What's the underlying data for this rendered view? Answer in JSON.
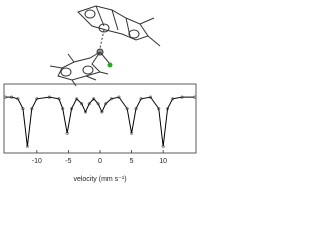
{
  "chart_data": {
    "type": "line",
    "xlabel": "velocity (mm s⁻¹)",
    "x": [
      -15,
      -14,
      -13,
      -12.2,
      -11.5,
      -10.8,
      -10,
      -8,
      -6.5,
      -5.9,
      -5.2,
      -4.5,
      -3.7,
      -2.9,
      -2.3,
      -1.7,
      -1,
      -0.3,
      0.3,
      0.9,
      1.8,
      3,
      4.3,
      5.0,
      5.7,
      6.5,
      8,
      9.3,
      10,
      10.7,
      11.5,
      13,
      15
    ],
    "series": [
      {
        "color": "#333333",
        "values": [
          1.0,
          1.0,
          0.99,
          0.93,
          0.7,
          0.93,
          0.99,
          1.0,
          0.99,
          0.93,
          0.78,
          0.93,
          0.99,
          0.96,
          0.91,
          0.96,
          0.99,
          0.96,
          0.91,
          0.96,
          0.99,
          1.0,
          0.93,
          0.78,
          0.93,
          0.99,
          1.0,
          0.93,
          0.7,
          0.93,
          0.99,
          1.0,
          1.0
        ]
      }
    ],
    "xlim": [
      -15.2,
      15.2
    ],
    "xticks": [
      -10,
      -5,
      0,
      5,
      10
    ],
    "ylim": [
      0.66,
      1.08
    ]
  }
}
